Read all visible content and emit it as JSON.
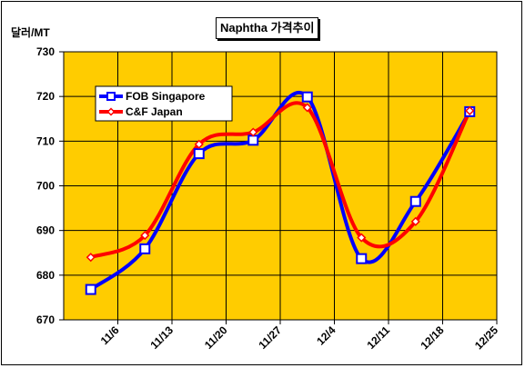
{
  "chart_data": {
    "type": "line",
    "title": "Naphtha 가격추이",
    "ylabel": "달러/MT",
    "xlabel": "",
    "categories": [
      "11/6",
      "11/13",
      "11/20",
      "11/27",
      "12/4",
      "12/11",
      "12/18",
      "12/25"
    ],
    "ylim": [
      670,
      730
    ],
    "yticks": [
      670,
      680,
      690,
      700,
      710,
      720,
      730
    ],
    "grid": true,
    "legend_position": "top-left",
    "plot_background": "#FFCC00",
    "series": [
      {
        "name": "FOB Singapore",
        "color": "#0000FF",
        "marker": "square",
        "values": [
          676.8,
          685.9,
          707.2,
          710.2,
          719.9,
          683.7,
          696.5,
          716.6
        ]
      },
      {
        "name": "C&F Japan",
        "color": "#FF0000",
        "marker": "diamond",
        "values": [
          684.0,
          688.9,
          709.3,
          712.0,
          717.5,
          688.4,
          692.0,
          716.8
        ]
      }
    ]
  }
}
